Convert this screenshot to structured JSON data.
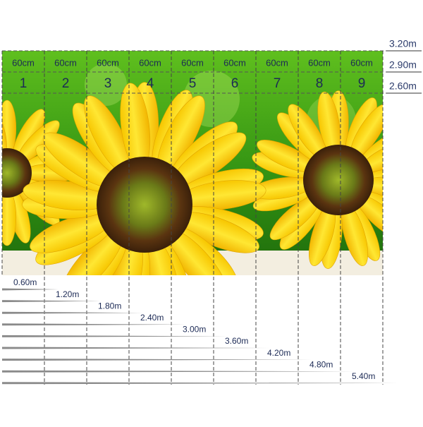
{
  "panels": [
    {
      "width": "60cm",
      "number": "1"
    },
    {
      "width": "60cm",
      "number": "2"
    },
    {
      "width": "60cm",
      "number": "3"
    },
    {
      "width": "60cm",
      "number": "4"
    },
    {
      "width": "60cm",
      "number": "5"
    },
    {
      "width": "60cm",
      "number": "6"
    },
    {
      "width": "60cm",
      "number": "7"
    },
    {
      "width": "60cm",
      "number": "8"
    },
    {
      "width": "60cm",
      "number": "9"
    }
  ],
  "heights": [
    "3.20m",
    "2.90m",
    "2.60m"
  ],
  "widths": [
    "0.60m",
    "1.20m",
    "1.80m",
    "2.40m",
    "3.00m",
    "3.60m",
    "4.20m",
    "4.80m",
    "5.40m"
  ]
}
